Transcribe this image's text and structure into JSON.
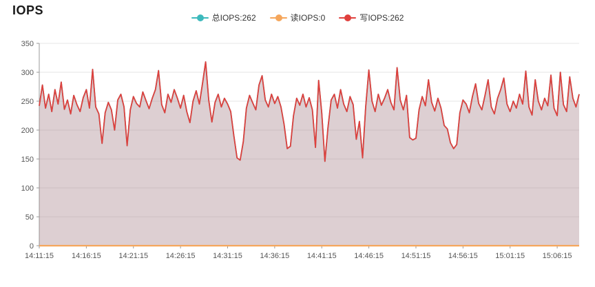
{
  "header": {
    "title": "IOPS"
  },
  "legend": {
    "items": [
      {
        "id": "total-iops",
        "label": "总IOPS:262",
        "color": "#3cb9bc"
      },
      {
        "id": "read-iops",
        "label": "读IOPS:0",
        "color": "#f5a65b"
      },
      {
        "id": "write-iops",
        "label": "写IOPS:262",
        "color": "#e0403d"
      }
    ]
  },
  "chart_data": {
    "type": "area",
    "title": "IOPS",
    "xlabel": "",
    "ylabel": "",
    "ylim": [
      0,
      350
    ],
    "y_ticks": [
      0,
      50,
      100,
      150,
      200,
      250,
      300,
      350
    ],
    "grid": true,
    "legend_position": "top-center",
    "x_start": "14:11:15",
    "x_step_seconds": 20,
    "x_tick_interval_seconds": 300,
    "x_tick_labels": [
      "14:11:15",
      "14:16:15",
      "14:21:15",
      "14:26:15",
      "14:31:15",
      "14:36:15",
      "14:41:15",
      "14:46:15",
      "14:51:15",
      "14:56:15",
      "15:01:15",
      "15:06:15"
    ],
    "series": [
      {
        "name": "总IOPS",
        "current": 262,
        "color": "#3cb9bc",
        "values_equal_to": "写IOPS",
        "note": "hidden beneath 写IOPS line (identical values)"
      },
      {
        "name": "读IOPS",
        "current": 0,
        "color": "#f5a65b",
        "values_constant": 0
      },
      {
        "name": "写IOPS",
        "current": 262,
        "color": "#e0403d",
        "area_fill": "rgba(158,118,126,0.35)",
        "values": [
          242,
          278,
          238,
          262,
          232,
          270,
          245,
          283,
          236,
          252,
          228,
          260,
          244,
          232,
          256,
          270,
          238,
          305,
          240,
          228,
          177,
          230,
          248,
          235,
          200,
          252,
          262,
          240,
          173,
          235,
          258,
          246,
          240,
          266,
          251,
          237,
          255,
          270,
          303,
          244,
          230,
          262,
          248,
          270,
          255,
          238,
          260,
          232,
          213,
          250,
          268,
          245,
          280,
          318,
          252,
          214,
          248,
          262,
          240,
          255,
          245,
          232,
          190,
          152,
          148,
          180,
          238,
          260,
          247,
          235,
          278,
          294,
          252,
          240,
          262,
          246,
          258,
          240,
          210,
          168,
          172,
          225,
          255,
          243,
          262,
          240,
          256,
          235,
          170,
          286,
          230,
          146,
          205,
          252,
          262,
          238,
          270,
          245,
          232,
          258,
          244,
          184,
          215,
          152,
          240,
          304,
          250,
          232,
          262,
          243,
          255,
          270,
          248,
          235,
          308,
          252,
          235,
          260,
          187,
          183,
          186,
          235,
          258,
          242,
          287,
          248,
          233,
          255,
          238,
          208,
          202,
          178,
          168,
          175,
          230,
          252,
          245,
          230,
          258,
          280,
          246,
          235,
          260,
          287,
          240,
          228,
          255,
          270,
          290,
          245,
          232,
          250,
          238,
          262,
          245,
          302,
          240,
          226,
          287,
          250,
          235,
          255,
          242,
          295,
          238,
          225,
          300,
          244,
          232,
          292,
          255,
          240,
          262
        ]
      }
    ],
    "colors": {
      "grid": "#e6e6e6",
      "axis": "#999999",
      "axis_label": "#555555"
    }
  }
}
